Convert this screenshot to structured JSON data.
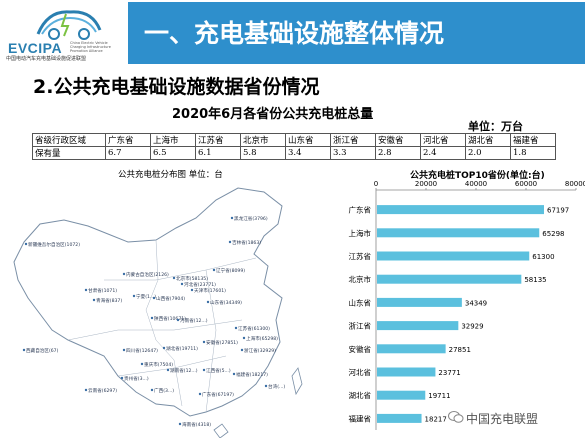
{
  "header": {
    "logo_text": "EVCIPA",
    "logo_small": "China Electric Vehicle Charging Infrastructure Promotion Alliance",
    "logo_subtitle": "中国电动汽车充电基础设施促进联盟",
    "title": "一、充电基础设施整体情况"
  },
  "subtitle": "2.公共充电基础设施数据省份情况",
  "table": {
    "title": "2020年6月各省份公共充电桩总量",
    "unit": "单位：万台",
    "header_label": "省级行政区域",
    "row_label": "保有量",
    "provinces": [
      "广东省",
      "上海市",
      "江苏省",
      "北京市",
      "山东省",
      "浙江省",
      "安徽省",
      "河北省",
      "湖北省",
      "福建省"
    ],
    "values": [
      "6.7",
      "6.5",
      "6.1",
      "5.8",
      "3.4",
      "3.3",
      "2.8",
      "2.4",
      "2.0",
      "1.8"
    ]
  },
  "map": {
    "title": "公共充电桩分布图  单位：台",
    "labels": [
      "黑龙江省(3796)",
      "吉林省(1863)",
      "内蒙古自治区(2126)",
      "辽宁省(8099)",
      "北京市(58135)",
      "天津市(17601)",
      "河北省(23771)",
      "山东省(34349)",
      "新疆维吾尔自治区(1072)",
      "甘肃省(1071)",
      "宁夏(1...)",
      "山西省(7904)",
      "陕西省(10671)",
      "青海省(837)",
      "河南省(12...)",
      "江苏省(61300)",
      "上海市(65298)",
      "西藏自治区(67)",
      "四川省(12647)",
      "湖北省(19711)",
      "安徽省(27851)",
      "浙江省(32929)",
      "重庆市(7504)",
      "湖南省(12...)",
      "江西省(5...)",
      "贵州省(3...)",
      "福建省(18217)",
      "云南省(6297)",
      "广西(3...)",
      "广东省(67197)",
      "海南省(4318)",
      "台湾(...)"
    ]
  },
  "watermark": "中国充电联盟",
  "chart_data": {
    "type": "bar",
    "orientation": "horizontal",
    "title": "公共充电桩TOP10省份(单位:台)",
    "categories": [
      "广东省",
      "上海市",
      "江苏省",
      "北京市",
      "山东省",
      "浙江省",
      "安徽省",
      "河北省",
      "湖北省",
      "福建省"
    ],
    "values": [
      67197,
      65298,
      61300,
      58135,
      34349,
      32929,
      27851,
      23771,
      19711,
      18217
    ],
    "xlim": [
      0,
      80000
    ],
    "xticks": [
      "0",
      "20000",
      "40000",
      "60000",
      "80000"
    ],
    "bar_color": "#5bc0de",
    "grid": false
  }
}
